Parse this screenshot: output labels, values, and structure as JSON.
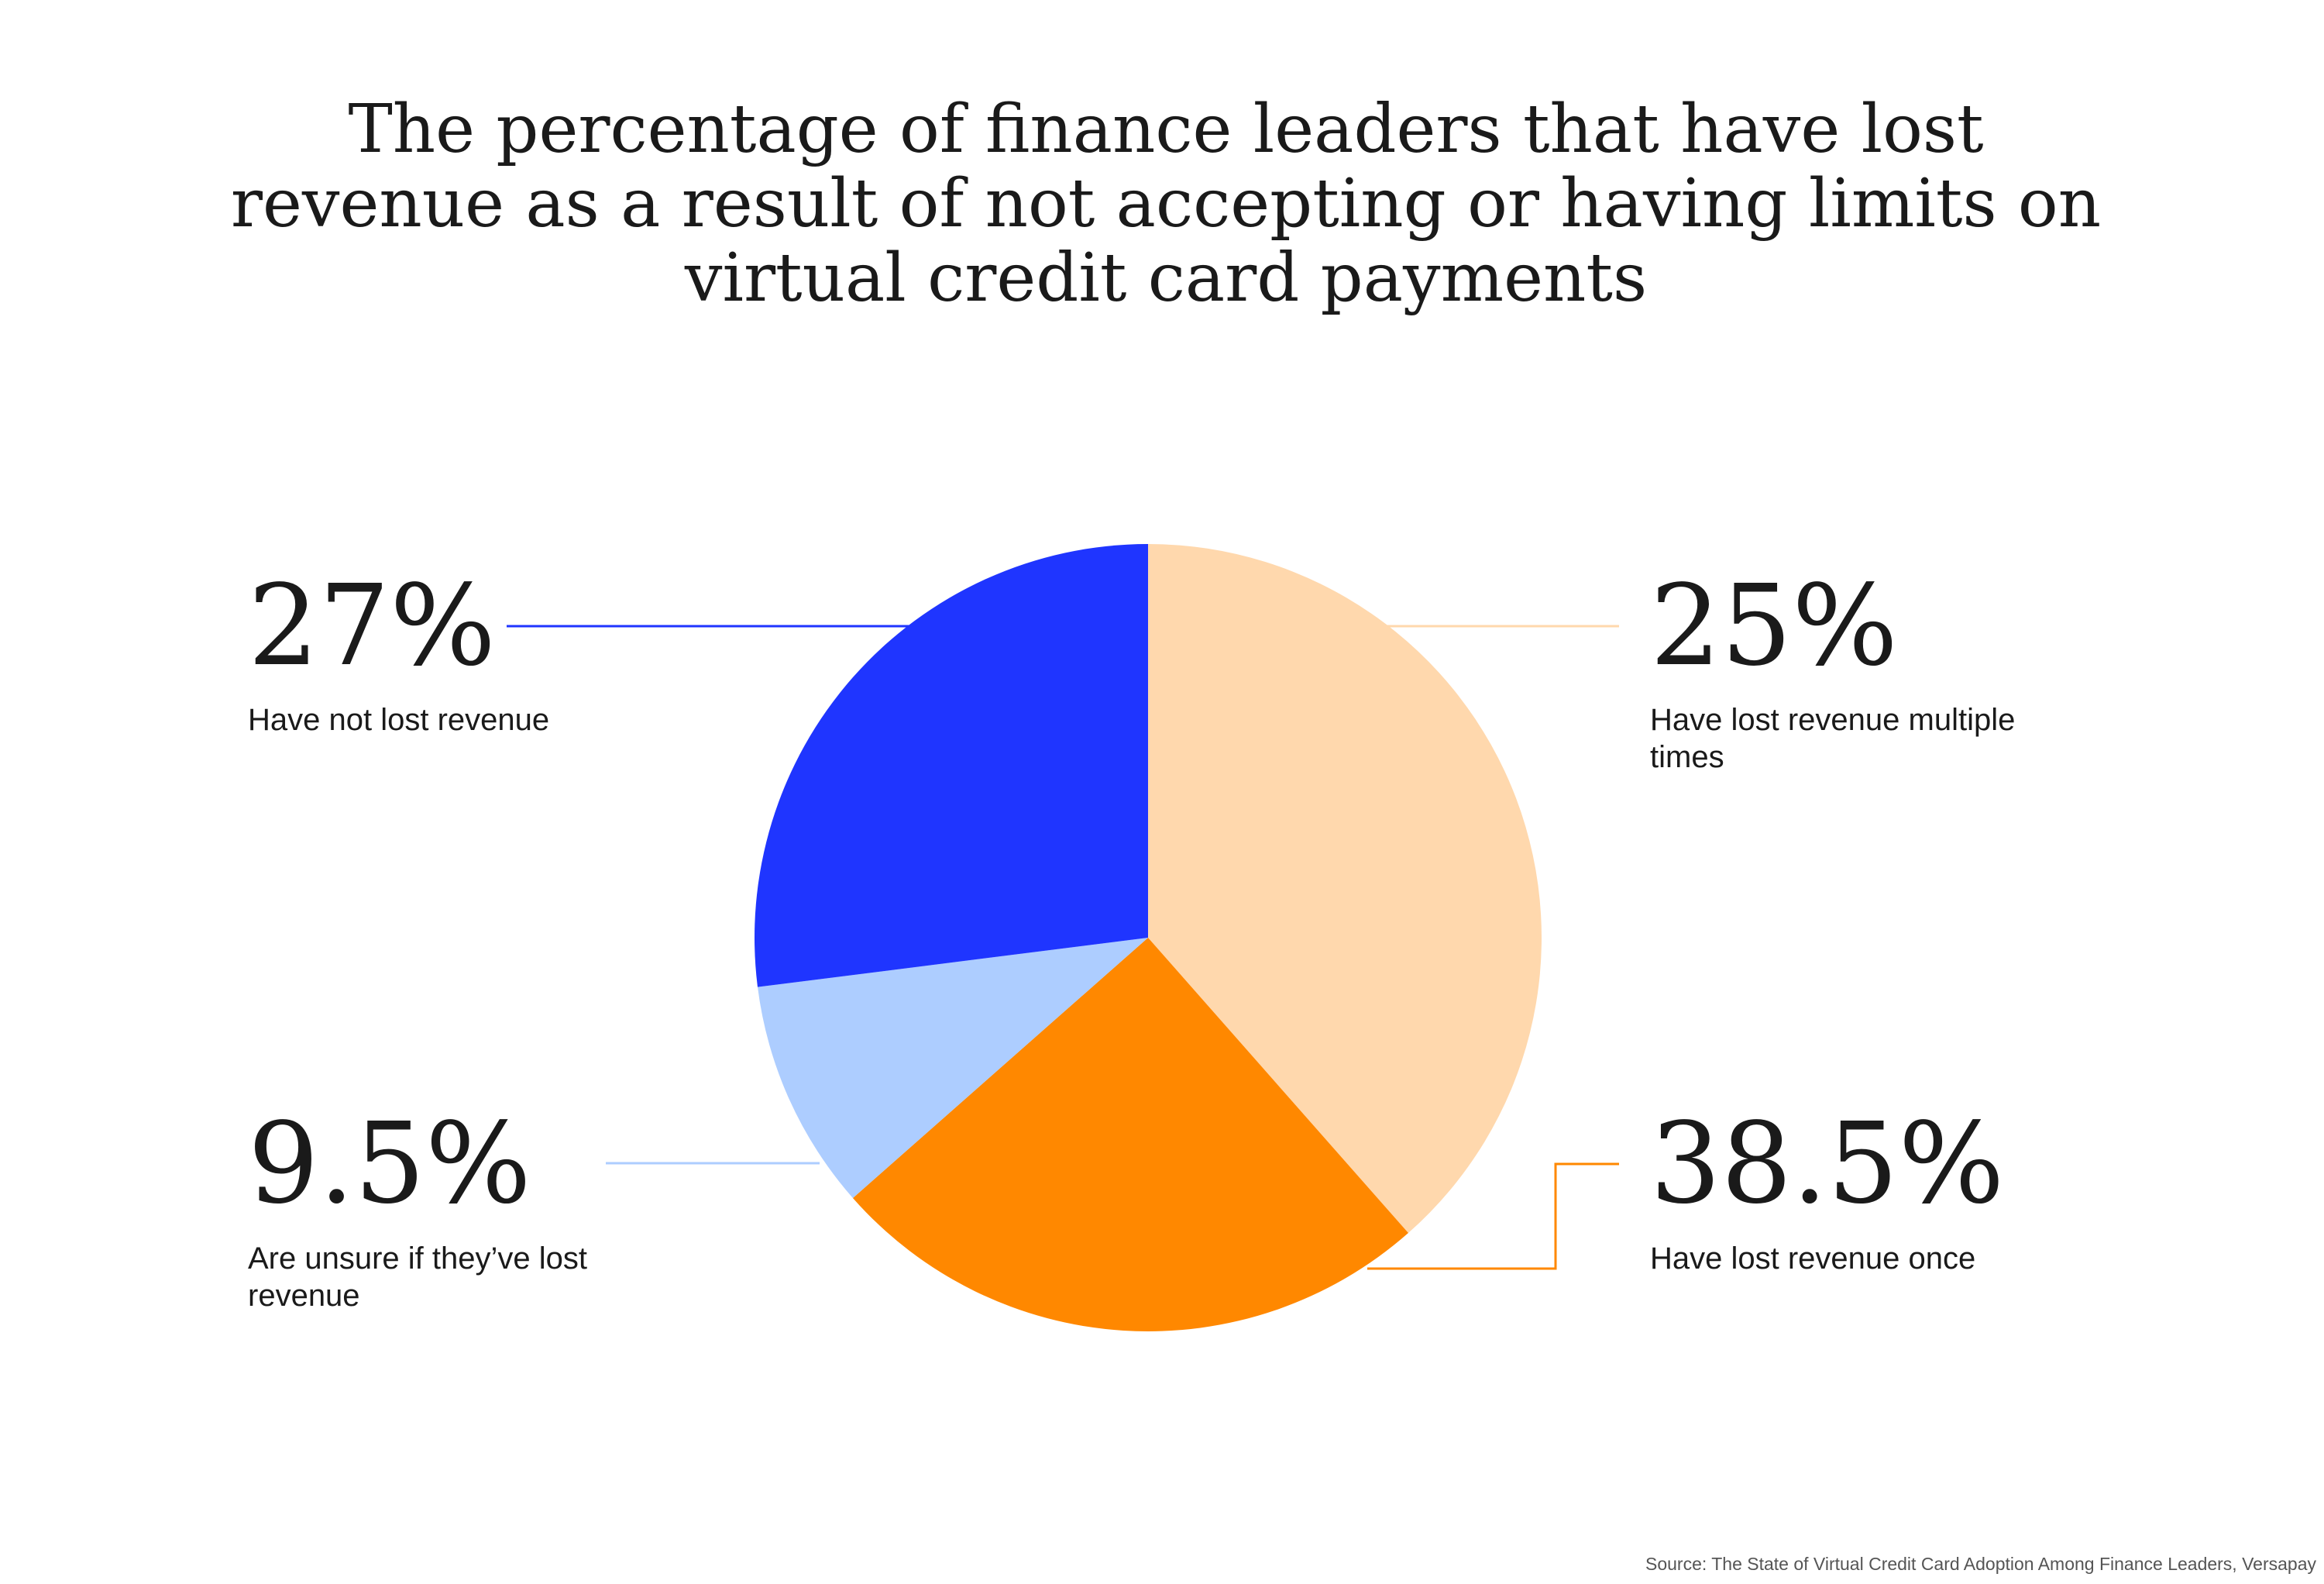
{
  "chart_data": {
    "type": "pie",
    "title": "The percentage of finance leaders that have lost revenue as a result of not accepting or having limits on virtual credit card payments",
    "title_lines": [
      "The percentage of finance leaders that have lost",
      "revenue as a result of not accepting or having limits on",
      "virtual credit card payments"
    ],
    "start": "12 o'clock",
    "direction": "clockwise",
    "slices": [
      {
        "value": 38.5,
        "value_label": "38.5%",
        "label": "Have lost revenue once",
        "label_lines": [
          "Have lost revenue once"
        ],
        "color": "#FFD8AD",
        "leader_color": "#FF8800"
      },
      {
        "value": 25,
        "value_label": "25%",
        "label": "Have lost revenue multiple times",
        "label_lines": [
          "Have lost revenue multiple",
          "times"
        ],
        "color": "#FF8800",
        "leader_color": "#FFD8AD"
      },
      {
        "value": 9.5,
        "value_label": "9.5%",
        "label": "Are unsure if they’ve lost revenue",
        "label_lines": [
          "Are unsure if they’ve lost",
          "revenue"
        ],
        "color": "#ADCDFF",
        "leader_color": "#ADCDFF"
      },
      {
        "value": 27,
        "value_label": "27%",
        "label": "Have not lost revenue",
        "label_lines": [
          "Have not lost revenue"
        ],
        "color": "#1F35FF",
        "leader_color": "#1F35FF"
      }
    ],
    "source": "Source: The State of Virtual Credit Card Adoption Among Finance Leaders, Versapay"
  }
}
